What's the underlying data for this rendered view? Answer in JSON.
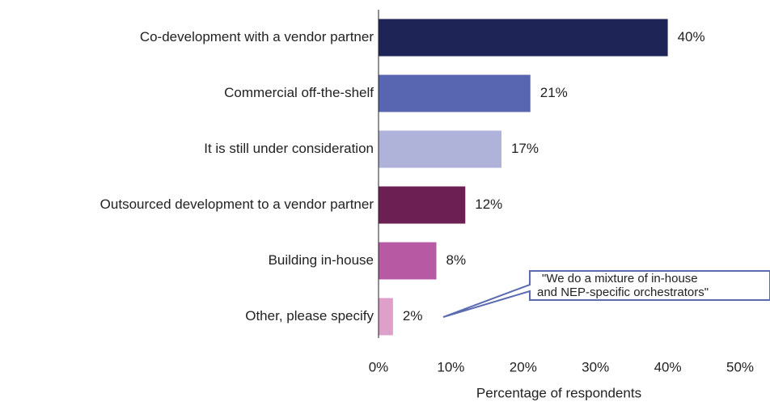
{
  "chart_data": {
    "type": "barh",
    "categories": [
      "Co-development with a vendor partner",
      "Commercial off-the-shelf",
      "It is still under consideration",
      "Outsourced development to a vendor partner",
      "Building in-house",
      "Other, please specify"
    ],
    "values": [
      40,
      21,
      17,
      12,
      8,
      2
    ],
    "value_labels": [
      "40%",
      "21%",
      "17%",
      "12%",
      "8%",
      "2%"
    ],
    "colors": [
      "#1f2456",
      "#5865b0",
      "#b0b3d9",
      "#6b1f52",
      "#b75aa3",
      "#dda0c8"
    ],
    "xlim": [
      0,
      50
    ],
    "xticks": [
      {
        "value": 0,
        "label": "0%"
      },
      {
        "value": 10,
        "label": "10%"
      },
      {
        "value": 20,
        "label": "20%"
      },
      {
        "value": 30,
        "label": "30%"
      },
      {
        "value": 40,
        "label": "40%"
      },
      {
        "value": 50,
        "label": "50%"
      }
    ],
    "xlabel": "Percentage of respondents",
    "annotation": [
      "\"We do a mixture of in-house",
      "and NEP-specific orchestrators\""
    ]
  }
}
